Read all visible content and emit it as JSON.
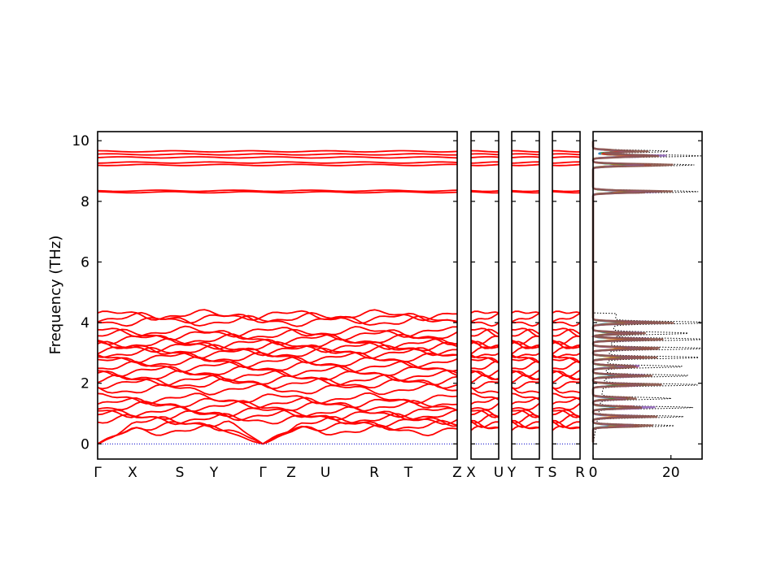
{
  "chart_data": {
    "type": "line",
    "ylabel": "Frequency (THz)",
    "ylim": [
      -0.5,
      10.3
    ],
    "yticks": [
      0,
      2,
      4,
      6,
      8,
      10
    ],
    "band_color": "#ff0000",
    "zero_line_color": "#0000cc",
    "band_panels": [
      {
        "labels": [
          "Γ",
          "X",
          "S",
          "Y",
          "Γ",
          "Z",
          "U",
          "R",
          "T",
          "Z"
        ]
      },
      {
        "labels": [
          "X",
          "U"
        ]
      },
      {
        "labels": [
          "Y",
          "T"
        ]
      },
      {
        "labels": [
          "S",
          "R"
        ]
      }
    ],
    "band_levels_thz": [
      0.45,
      0.6,
      0.72,
      0.82,
      0.95,
      1.05,
      1.25,
      1.35,
      1.5,
      1.8,
      2.0,
      2.1,
      2.25,
      2.4,
      2.55,
      2.7,
      2.85,
      3.0,
      3.1,
      3.2,
      3.3,
      3.45,
      3.6,
      3.7,
      4.05,
      4.15,
      4.25,
      8.3,
      8.35,
      9.2,
      9.28,
      9.45,
      9.55,
      9.65
    ],
    "dos_panel": {
      "xticks": [
        0,
        20
      ],
      "xlim": [
        0,
        28
      ],
      "colors": [
        "#1f77b4",
        "#ff7f0e",
        "#2ca02c",
        "#d62728",
        "#9467bd",
        "#8c564b"
      ],
      "total_style": "black dotted",
      "peaks": [
        {
          "f": 0.6,
          "total": 20
        },
        {
          "f": 0.9,
          "total": 22
        },
        {
          "f": 1.2,
          "total": 24
        },
        {
          "f": 1.5,
          "total": 18
        },
        {
          "f": 1.95,
          "total": 25
        },
        {
          "f": 2.25,
          "total": 22
        },
        {
          "f": 2.55,
          "total": 20
        },
        {
          "f": 2.85,
          "total": 24
        },
        {
          "f": 3.15,
          "total": 26
        },
        {
          "f": 3.45,
          "total": 25
        },
        {
          "f": 3.65,
          "total": 20
        },
        {
          "f": 4.0,
          "total": 28
        },
        {
          "f": 8.32,
          "total": 27
        },
        {
          "f": 9.2,
          "total": 26
        },
        {
          "f": 9.5,
          "total": 28
        },
        {
          "f": 9.65,
          "total": 20
        }
      ]
    }
  }
}
